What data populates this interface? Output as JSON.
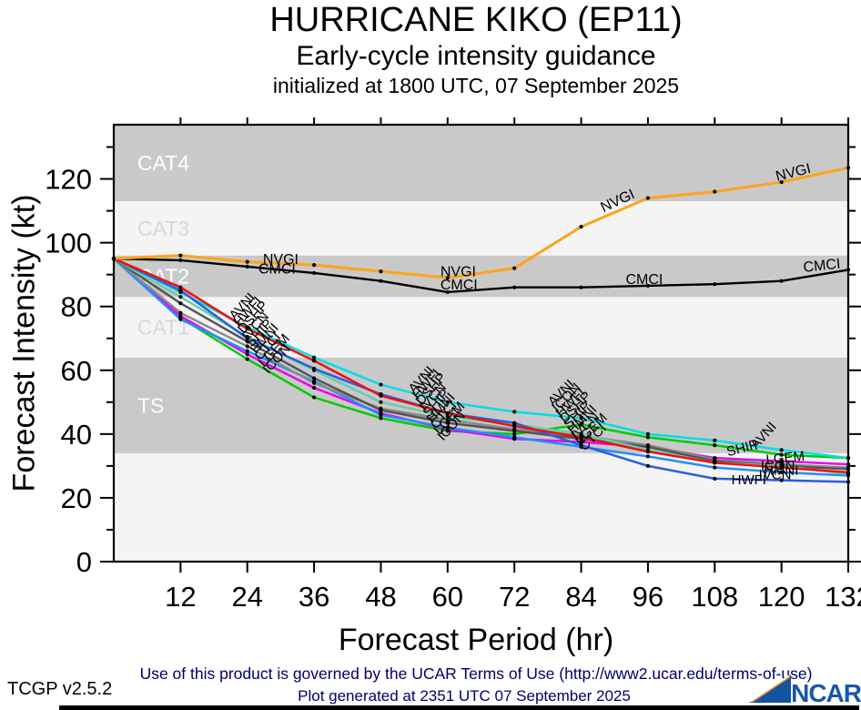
{
  "header": {
    "title": "HURRICANE KIKO (EP11)",
    "subtitle": "Early-cycle intensity guidance",
    "init_line": "initialized at 1800 UTC, 07 September 2025"
  },
  "axes": {
    "x_label": "Forecast Period (hr)",
    "y_label": "Forecast Intensity (kt)"
  },
  "footer": {
    "terms": "Use of this product is governed by the UCAR Terms of Use (http://www2.ucar.edu/terms-of-use)",
    "version": "TCGP v2.5.2",
    "generated": "Plot generated at 2351 UTC   07 September 2025",
    "logo_text": "NCAR",
    "logo_color": "#1558A8"
  },
  "chart_data": {
    "type": "line",
    "title": "HURRICANE KIKO (EP11)",
    "subtitle": "Early-cycle intensity guidance initialized at 1800 UTC, 07 September 2025",
    "xlabel": "Forecast Period (hr)",
    "ylabel": "Forecast Intensity (kt)",
    "xlim": [
      0,
      132
    ],
    "ylim": [
      0,
      137
    ],
    "xticks": [
      12,
      24,
      36,
      48,
      60,
      72,
      84,
      96,
      108,
      120,
      132
    ],
    "yticks": [
      0,
      20,
      40,
      60,
      80,
      100,
      120
    ],
    "yticks_minor": [
      10,
      30,
      50,
      70,
      90,
      110,
      130
    ],
    "x": [
      0,
      12,
      24,
      36,
      48,
      60,
      72,
      84,
      96,
      108,
      120,
      132
    ],
    "grid": false,
    "legend": "inline-labels",
    "band_colors": {
      "dark": "#c9c9c9",
      "light": "#f4f4f4"
    },
    "bands": [
      {
        "label": "TS",
        "from": 34,
        "to": 64,
        "shade": "dark",
        "label_color": "#ffffff"
      },
      {
        "label": "CAT1",
        "from": 64,
        "to": 83,
        "shade": "light",
        "label_color": "#d8d8d8"
      },
      {
        "label": "CAT2",
        "from": 83,
        "to": 96,
        "shade": "dark",
        "label_color": "#ffffff"
      },
      {
        "label": "CAT3",
        "from": 96,
        "to": 113,
        "shade": "light",
        "label_color": "#d8d8d8"
      },
      {
        "label": "CAT4",
        "from": 113,
        "to": 137,
        "shade": "dark",
        "label_color": "#ffffff"
      }
    ],
    "series": [
      {
        "name": "ICON",
        "color": "#00CC00",
        "width": 2.5,
        "values": [
          95,
          76.5,
          63.5,
          51.5,
          45,
          41,
          40,
          43,
          39,
          36.5,
          33.5,
          32.5
        ]
      },
      {
        "name": "LGEM",
        "color": "#EE00EE",
        "width": 2.5,
        "values": [
          95,
          77,
          65,
          54.5,
          46.5,
          41.5,
          38.5,
          37.5,
          36,
          32.5,
          31.5,
          30.5
        ]
      },
      {
        "name": "CTCI",
        "color": "#1E90FF",
        "width": 2.5,
        "values": [
          95,
          76,
          66,
          56.5,
          46,
          42,
          39,
          36,
          33,
          29.5,
          28,
          27
        ]
      },
      {
        "name": "HMNI",
        "color": "#8A8A8A",
        "width": 2.5,
        "values": [
          95,
          78,
          67.5,
          56,
          48,
          44.5,
          41.5,
          39.5,
          36.5,
          32,
          30.5,
          29.5
        ]
      },
      {
        "name": "SHIP",
        "color": "#545454",
        "width": 2.5,
        "values": [
          95,
          81,
          69,
          57.5,
          47.5,
          43.5,
          41,
          38.5,
          36,
          31.5,
          30,
          29
        ]
      },
      {
        "name": "IVCN",
        "color": "#66CDAA",
        "width": 2.5,
        "values": [
          95,
          83,
          70.5,
          60,
          50,
          45.5,
          43,
          40,
          35,
          31,
          30,
          27.5
        ]
      },
      {
        "name": "AVNI",
        "color": "#00DDE6",
        "width": 2.5,
        "values": [
          95,
          84.5,
          73.5,
          64,
          55.5,
          50,
          47,
          45,
          40,
          38,
          35,
          32.5
        ]
      },
      {
        "name": "HWFI",
        "color": "#2A5FDF",
        "width": 2.5,
        "values": [
          95,
          85,
          70,
          60.5,
          52.5,
          46.5,
          43.5,
          36.5,
          30,
          26,
          25.5,
          25
        ]
      },
      {
        "name": "DSHP",
        "color": "#EE1111",
        "width": 2.5,
        "values": [
          95,
          86,
          73,
          63,
          52,
          46.5,
          42.5,
          39,
          34.5,
          31,
          29.5,
          28
        ]
      },
      {
        "name": "CMCI",
        "color": "#000000",
        "width": 2.4,
        "values": [
          95,
          94.5,
          92.5,
          90.5,
          88,
          84.5,
          86,
          86,
          86.5,
          87,
          88,
          91.5
        ]
      },
      {
        "name": "NVGI",
        "color": "#FFA318",
        "width": 3,
        "values": [
          95,
          96,
          94,
          93,
          91,
          89,
          92,
          105,
          114,
          116,
          119,
          123.5
        ]
      }
    ],
    "annotations": [
      {
        "text": "NVGI",
        "hr": 26.8,
        "kt": 93.3,
        "rot": 0,
        "size": 16
      },
      {
        "text": "CMCI",
        "hr": 26.0,
        "kt": 90.3,
        "rot": 0,
        "size": 16
      },
      {
        "text": "NVGI",
        "hr": 58.7,
        "kt": 89.5,
        "rot": 0,
        "size": 16
      },
      {
        "text": "CMCI",
        "hr": 58.7,
        "kt": 85.3,
        "rot": 0,
        "size": 16
      },
      {
        "text": "NVGI",
        "hr": 88.0,
        "kt": 109.5,
        "rot": -25,
        "size": 16
      },
      {
        "text": "CMCI",
        "hr": 92.0,
        "kt": 87.0,
        "rot": 0,
        "size": 16
      },
      {
        "text": "NVGI",
        "hr": 119.2,
        "kt": 119.3,
        "rot": -14,
        "size": 16
      },
      {
        "text": "CMCI",
        "hr": 124.0,
        "kt": 90.8,
        "rot": -6,
        "size": 16
      },
      {
        "text": "AVNI",
        "hr": 21.8,
        "kt": 75.5,
        "rot": -48,
        "size": 15
      },
      {
        "text": "HWFI",
        "hr": 22.55,
        "kt": 73.4,
        "rot": -48,
        "size": 15
      },
      {
        "text": "DSHP",
        "hr": 23.3,
        "kt": 71.3,
        "rot": -48,
        "size": 15
      },
      {
        "text": "IVCN",
        "hr": 24.05,
        "kt": 69.2,
        "rot": -48,
        "size": 15
      },
      {
        "text": "SHIP",
        "hr": 24.8,
        "kt": 67.1,
        "rot": -48,
        "size": 15
      },
      {
        "text": "HMNI",
        "hr": 25.55,
        "kt": 65.0,
        "rot": -48,
        "size": 15
      },
      {
        "text": "CTCI",
        "hr": 26.3,
        "kt": 62.9,
        "rot": -48,
        "size": 15
      },
      {
        "text": "LGEM",
        "hr": 27.05,
        "kt": 60.8,
        "rot": -48,
        "size": 15
      },
      {
        "text": "ICON",
        "hr": 27.8,
        "kt": 58.7,
        "rot": -48,
        "size": 15
      },
      {
        "text": "AVNI",
        "hr": 54.0,
        "kt": 52.5,
        "rot": -48,
        "size": 15
      },
      {
        "text": "HWFI",
        "hr": 54.65,
        "kt": 50.65,
        "rot": -48,
        "size": 15
      },
      {
        "text": "DSHP",
        "hr": 55.3,
        "kt": 48.8,
        "rot": -48,
        "size": 15
      },
      {
        "text": "IVCN",
        "hr": 55.95,
        "kt": 46.95,
        "rot": -48,
        "size": 15
      },
      {
        "text": "SHIP",
        "hr": 56.6,
        "kt": 45.1,
        "rot": -48,
        "size": 15
      },
      {
        "text": "HMNI",
        "hr": 57.25,
        "kt": 43.25,
        "rot": -48,
        "size": 15
      },
      {
        "text": "CTCI",
        "hr": 57.9,
        "kt": 41.4,
        "rot": -48,
        "size": 15
      },
      {
        "text": "LGEM",
        "hr": 58.55,
        "kt": 39.55,
        "rot": -48,
        "size": 15
      },
      {
        "text": "ICON",
        "hr": 59.2,
        "kt": 37.7,
        "rot": -48,
        "size": 15
      },
      {
        "text": "AVNI",
        "hr": 79.0,
        "kt": 48.5,
        "rot": -45,
        "size": 15
      },
      {
        "text": "ICON",
        "hr": 79.7,
        "kt": 46.75,
        "rot": -45,
        "size": 15
      },
      {
        "text": "HWFI",
        "hr": 80.4,
        "kt": 45.0,
        "rot": -45,
        "size": 15
      },
      {
        "text": "DSHP",
        "hr": 81.1,
        "kt": 43.25,
        "rot": -45,
        "size": 15
      },
      {
        "text": "SHIP",
        "hr": 81.8,
        "kt": 41.5,
        "rot": -45,
        "size": 15
      },
      {
        "text": "HMNI",
        "hr": 82.5,
        "kt": 39.75,
        "rot": -45,
        "size": 15
      },
      {
        "text": "IVCN",
        "hr": 83.2,
        "kt": 38.0,
        "rot": -45,
        "size": 15
      },
      {
        "text": "LGEM",
        "hr": 83.9,
        "kt": 36.25,
        "rot": -45,
        "size": 15
      },
      {
        "text": "CTCI",
        "hr": 84.6,
        "kt": 34.5,
        "rot": -45,
        "size": 15
      },
      {
        "text": "SHIP",
        "hr": 110.4,
        "kt": 33.0,
        "rot": -15,
        "size": 15
      },
      {
        "text": "AVNI",
        "hr": 115.5,
        "kt": 35.0,
        "rot": -48,
        "size": 15
      },
      {
        "text": "LGEM",
        "hr": 117.3,
        "kt": 30.5,
        "rot": -6,
        "size": 15
      },
      {
        "text": "ICON",
        "hr": 116.3,
        "kt": 28.8,
        "rot": 0,
        "size": 15
      },
      {
        "text": "HMNI",
        "hr": 116.8,
        "kt": 27.2,
        "rot": 0,
        "size": 15
      },
      {
        "text": "IVCN",
        "hr": 115.9,
        "kt": 25.8,
        "rot": 0,
        "size": 15
      },
      {
        "text": "HWFI",
        "hr": 111.0,
        "kt": 24.3,
        "rot": 0,
        "size": 15
      }
    ]
  }
}
